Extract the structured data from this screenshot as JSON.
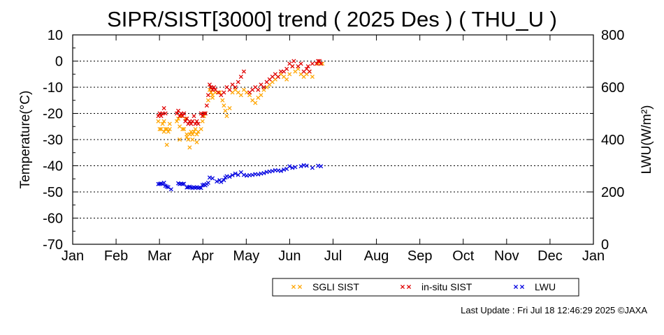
{
  "chart_data": {
    "type": "scatter",
    "title": "SIPR/SIST[3000] trend ( 2025 Des ) ( THU_U )",
    "ylabel": "Temperature(°C)",
    "ylabel_right": "LWU(W/m²)",
    "ylim": [
      -70,
      10
    ],
    "ylim_right": [
      0,
      800
    ],
    "yticks": [
      "10",
      "0",
      "-10",
      "-20",
      "-30",
      "-40",
      "-50",
      "-60",
      "-70"
    ],
    "yticks_right": [
      "800",
      "600",
      "400",
      "200",
      "0"
    ],
    "x_months": [
      "Jan",
      "Feb",
      "Mar",
      "Apr",
      "May",
      "Jun",
      "Jul",
      "Aug",
      "Sep",
      "Oct",
      "Nov",
      "Dec",
      "Jan"
    ],
    "xlim_days": [
      0,
      365
    ],
    "grid": "horizontal dotted",
    "legend_position": "bottom-right",
    "series": [
      {
        "name": "SGLI SIST",
        "axis": "left",
        "color": "#ffa500",
        "x": [
          60,
          61,
          62,
          63,
          64,
          64,
          65,
          66,
          66,
          67,
          68,
          68,
          73,
          74,
          75,
          75,
          76,
          77,
          78,
          79,
          80,
          80,
          81,
          82,
          82,
          83,
          84,
          84,
          85,
          86,
          87,
          87,
          88,
          90,
          91,
          92,
          93,
          95,
          96,
          97,
          98,
          98,
          100,
          103,
          105,
          106,
          107,
          108,
          110,
          112,
          114,
          116,
          118,
          120,
          122,
          124,
          126,
          128,
          130,
          132,
          134,
          136,
          138,
          140,
          142,
          144,
          146,
          148,
          150,
          152,
          154,
          156,
          158,
          160,
          162,
          164,
          166,
          168,
          172,
          175
        ],
        "y": [
          -23,
          -26,
          -26,
          -24,
          -23,
          -27,
          -26,
          -26,
          -32,
          -27,
          -24,
          -26,
          -23,
          -22,
          -30,
          -25,
          -21,
          -26,
          -26,
          -22,
          -28,
          -29,
          -30,
          -28,
          -33,
          -27,
          -28,
          -30,
          -27,
          -26,
          -28,
          -31,
          -27,
          -26,
          -23,
          -21,
          -20,
          -15,
          -11,
          -12,
          -13,
          -14,
          -12,
          -12,
          -15,
          -17,
          -19,
          -21,
          -18,
          -12,
          -11,
          -12,
          -13,
          -11,
          -12,
          -13,
          -15,
          -16,
          -14,
          -13,
          -11,
          -10,
          -9,
          -8,
          -7,
          -6,
          -5,
          -6,
          -7,
          -5,
          -2,
          -4,
          -3,
          -5,
          -6,
          -5,
          -4,
          -6,
          -1,
          -1
        ]
      },
      {
        "name": "in-situ SIST",
        "axis": "left",
        "color": "#e00000",
        "x": [
          60,
          61,
          62,
          63,
          64,
          65,
          73,
          74,
          75,
          76,
          77,
          78,
          79,
          80,
          81,
          82,
          83,
          84,
          85,
          86,
          87,
          88,
          90,
          91,
          92,
          93,
          94,
          95,
          96,
          97,
          98,
          99,
          100,
          102,
          104,
          106,
          108,
          110,
          112,
          114,
          116,
          118,
          120,
          124,
          126,
          128,
          130,
          132,
          134,
          136,
          138,
          140,
          142,
          144,
          146,
          148,
          150,
          152,
          154,
          155,
          158,
          160,
          162,
          164,
          165,
          166,
          168,
          171,
          172,
          173,
          174
        ],
        "y": [
          -21,
          -20,
          -21,
          -20,
          -18,
          -20,
          -20,
          -19,
          -21,
          -20,
          -21,
          -20,
          -23,
          -22,
          -24,
          -23,
          -24,
          -23,
          -21,
          -24,
          -23,
          -24,
          -20,
          -21,
          -20,
          -20,
          -17,
          -13,
          -9,
          -10,
          -11,
          -10,
          -11,
          -12,
          -13,
          -12,
          -10,
          -11,
          -9,
          -10,
          -8,
          -6,
          -4,
          -12,
          -11,
          -10,
          -11,
          -9,
          -10,
          -8,
          -7,
          -6,
          -5,
          -6,
          -4,
          -4,
          -3,
          -1,
          -2,
          0,
          -2,
          -1,
          -4,
          -3,
          -2,
          -4,
          -1,
          -1,
          0,
          0,
          -1
        ]
      },
      {
        "name": "LWU",
        "axis": "right",
        "color": "#0000e0",
        "x": [
          60,
          61,
          62,
          63,
          64,
          65,
          66,
          67,
          69,
          74,
          75,
          76,
          77,
          78,
          80,
          81,
          82,
          83,
          84,
          85,
          86,
          87,
          88,
          89,
          90,
          91,
          92,
          93,
          94,
          95,
          96,
          98,
          101,
          103,
          104,
          106,
          107,
          108,
          110,
          112,
          114,
          116,
          118,
          120,
          122,
          124,
          126,
          128,
          130,
          132,
          134,
          136,
          138,
          140,
          142,
          144,
          146,
          148,
          150,
          152,
          154,
          156,
          160,
          162,
          164,
          168,
          172,
          174
        ],
        "y": [
          230,
          231,
          232,
          230,
          235,
          223,
          220,
          218,
          210,
          233,
          230,
          232,
          230,
          231,
          217,
          218,
          220,
          217,
          215,
          218,
          216,
          218,
          215,
          217,
          215,
          226,
          228,
          225,
          230,
          235,
          255,
          252,
          240,
          245,
          238,
          245,
          255,
          260,
          258,
          264,
          270,
          265,
          275,
          265,
          262,
          264,
          265,
          268,
          267,
          270,
          272,
          276,
          278,
          280,
          283,
          282,
          280,
          285,
          288,
          298,
          292,
          295,
          298,
          302,
          300,
          292,
          300,
          298
        ]
      }
    ]
  },
  "footer": "Last Update : Fri Jul 18 12:46:29 2025  ©JAXA"
}
